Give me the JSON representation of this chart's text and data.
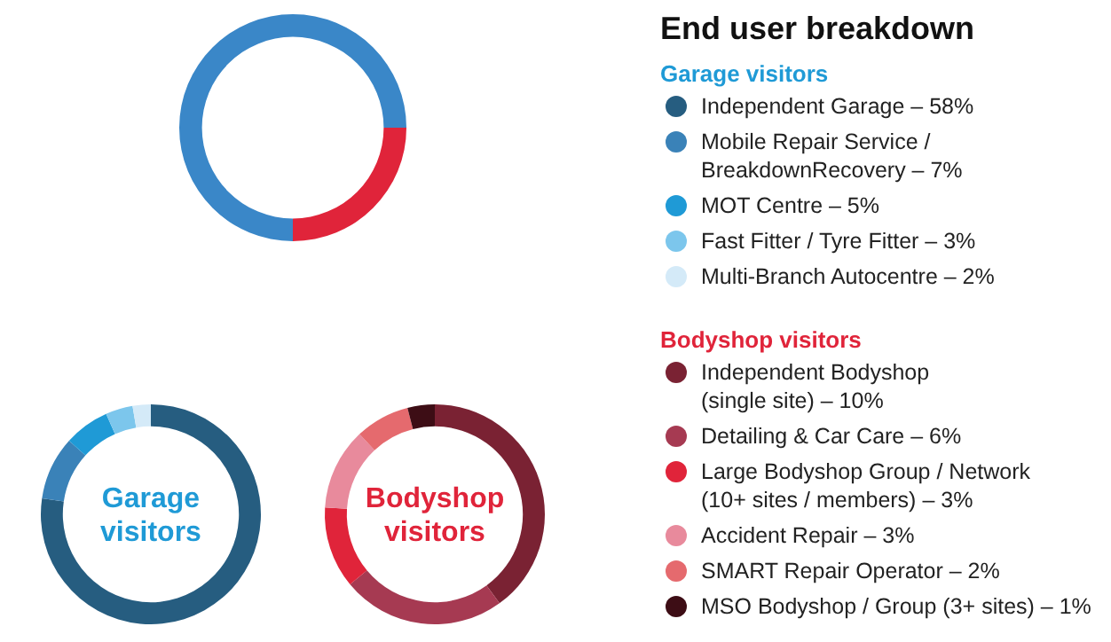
{
  "chart_data": [
    {
      "type": "donut",
      "title": "End user breakdown",
      "categories": [
        null,
        null
      ],
      "values": [
        75,
        25
      ],
      "colors": [
        "#3a87c8",
        "#e0243a"
      ],
      "legend": false
    },
    {
      "type": "donut",
      "legend_title": "Garage visitors",
      "annotations": [
        "Garage\nvisitors"
      ],
      "categories": [
        "Independent Garage",
        "Mobile Repair Service /\nBreakdownRecovery",
        "MOT Centre",
        "Fast Fitter / Tyre Fitter",
        "Multi-Branch Autocentre"
      ],
      "values": [
        58,
        7,
        5,
        3,
        2
      ],
      "value_labels": [
        "58%",
        "7%",
        "5%",
        "3%",
        "2%"
      ],
      "colors": [
        "#265d80",
        "#3a82b8",
        "#1f9ad6",
        "#7cc6ec",
        "#d4eaf8"
      ],
      "legend": "right"
    },
    {
      "type": "donut",
      "legend_title": "Bodyshop visitors",
      "annotations": [
        "Bodyshop\nvisitors"
      ],
      "categories": [
        "Independent Bodyshop\n(single site)",
        "Detailing & Car Care",
        "Large Bodyshop Group / Network\n(10+ sites / members)",
        "Accident Repair",
        "SMART Repair Operator",
        "MSO Bodyshop / Group (3+ sites)"
      ],
      "values": [
        10,
        6,
        3,
        3,
        2,
        1
      ],
      "value_labels": [
        "10%",
        "6%",
        "3%",
        "3%",
        "2%",
        "1%"
      ],
      "colors": [
        "#7a2233",
        "#a63a52",
        "#e0243a",
        "#e88a9c",
        "#e56a6e",
        "#3d0d15"
      ],
      "legend": "right"
    }
  ]
}
